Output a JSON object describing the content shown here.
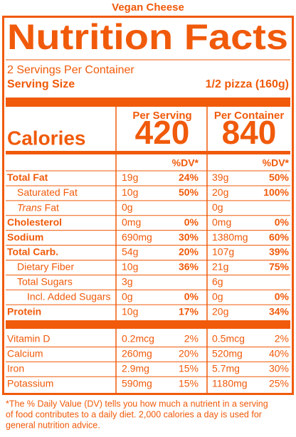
{
  "header": {
    "product": "Vegan Cheese",
    "title": "Nutrition Facts",
    "servings": "2 Servings Per Container",
    "serving_size_label": "Serving Size",
    "serving_size": "1/2 pizza (160g)"
  },
  "columns": [
    "Per Serving",
    "Per Container"
  ],
  "calories": {
    "label": "Calories",
    "values": [
      "420",
      "840"
    ]
  },
  "dv_header": [
    "%DV*",
    "%DV*"
  ],
  "nutrients": [
    {
      "name": "Total Fat",
      "bold": true,
      "indent": 0,
      "values": [
        [
          "19g",
          "24%"
        ],
        [
          "39g",
          "50%"
        ]
      ]
    },
    {
      "name": "Saturated Fat",
      "bold": false,
      "indent": 1,
      "values": [
        [
          "10g",
          "50%"
        ],
        [
          "20g",
          "100%"
        ]
      ]
    },
    {
      "italic_prefix": "Trans",
      "name": " Fat",
      "bold": false,
      "indent": 1,
      "values": [
        [
          "0g"
        ],
        [
          "0g"
        ]
      ]
    },
    {
      "name": "Cholesterol",
      "bold": true,
      "indent": 0,
      "values": [
        [
          "0mg",
          "0%"
        ],
        [
          "0mg",
          "0%"
        ]
      ]
    },
    {
      "name": "Sodium",
      "bold": true,
      "indent": 0,
      "values": [
        [
          "690mg",
          "30%"
        ],
        [
          "1380mg",
          "60%"
        ]
      ]
    },
    {
      "name": "Total Carb.",
      "bold": true,
      "indent": 0,
      "values": [
        [
          "54g",
          "20%"
        ],
        [
          "107g",
          "39%"
        ]
      ]
    },
    {
      "name": "Dietary Fiber",
      "bold": false,
      "indent": 1,
      "values": [
        [
          "10g",
          "36%"
        ],
        [
          "21g",
          "75%"
        ]
      ]
    },
    {
      "name": "Total Sugars",
      "bold": false,
      "indent": 1,
      "values": [
        [
          "3g"
        ],
        [
          "6g"
        ]
      ]
    },
    {
      "name": "Incl. Added Sugars",
      "bold": false,
      "indent": 2,
      "values": [
        [
          "0g",
          "0%"
        ],
        [
          "0g",
          "0%"
        ]
      ]
    },
    {
      "name": "Protein",
      "bold": true,
      "indent": 0,
      "values": [
        [
          "10g",
          "17%"
        ],
        [
          "20g",
          "34%"
        ]
      ]
    }
  ],
  "vitamins": [
    {
      "name": "Vitamin D",
      "values": [
        [
          "0.2mcg",
          "2%"
        ],
        [
          "0.5mcg",
          "2%"
        ]
      ]
    },
    {
      "name": "Calcium",
      "values": [
        [
          "260mg",
          "20%"
        ],
        [
          "520mg",
          "40%"
        ]
      ]
    },
    {
      "name": "Iron",
      "values": [
        [
          "2.9mg",
          "15%"
        ],
        [
          "5.7mg",
          "30%"
        ]
      ]
    },
    {
      "name": "Potassium",
      "values": [
        [
          "590mg",
          "15%"
        ],
        [
          "1180mg",
          "25%"
        ]
      ]
    }
  ],
  "footnote": [
    "*The % Daily Value (DV) tells you how much a nutrient in a serving",
    "of food contributes to a daily diet. 2,000 calories a day is used for",
    "general nutrition advice."
  ]
}
